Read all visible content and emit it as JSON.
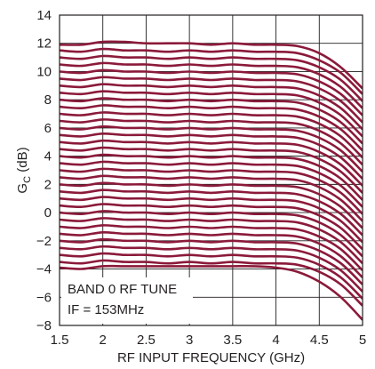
{
  "chart_data": {
    "type": "line",
    "xlabel": "RF INPUT FREQUENCY (GHz)",
    "ylabel_main": "G",
    "ylabel_sub": "C",
    "ylabel_unit": " (dB)",
    "xlim": [
      1.5,
      5
    ],
    "ylim": [
      -8,
      14
    ],
    "x_ticks": [
      "1.5",
      "2",
      "2.5",
      "3",
      "3.5",
      "4",
      "4.5",
      "5"
    ],
    "y_ticks": [
      "−8",
      "−6",
      "−4",
      "−2",
      "0",
      "2",
      "4",
      "6",
      "8",
      "10",
      "12",
      "14"
    ],
    "x_tick_values": [
      1.5,
      2,
      2.5,
      3,
      3.5,
      4,
      4.5,
      5
    ],
    "y_tick_values": [
      -8,
      -6,
      -4,
      -2,
      0,
      2,
      4,
      6,
      8,
      10,
      12,
      14
    ],
    "grid": true,
    "series_color": "#8b1a3a",
    "annotation": [
      "BAND 0 RF TUNE",
      "IF = 153MHz"
    ],
    "x": [
      1.5,
      1.75,
      2.0,
      2.25,
      2.5,
      2.75,
      3.0,
      3.25,
      3.5,
      3.75,
      4.0,
      4.25,
      4.5,
      4.75,
      5.0
    ],
    "series": [
      {
        "values": [
          11.9,
          11.9,
          12.1,
          12.1,
          12.0,
          12.0,
          12.0,
          11.9,
          12.0,
          11.9,
          11.9,
          11.8,
          11.3,
          10.3,
          8.8
        ]
      },
      {
        "values": [
          11.5,
          11.4,
          11.6,
          11.5,
          11.5,
          11.4,
          11.5,
          11.4,
          11.5,
          11.4,
          11.4,
          11.3,
          10.8,
          9.9,
          8.4
        ]
      },
      {
        "values": [
          11.0,
          10.9,
          11.1,
          11.0,
          11.0,
          10.9,
          11.0,
          10.9,
          11.0,
          10.9,
          10.9,
          10.8,
          10.3,
          9.4,
          7.9
        ]
      },
      {
        "values": [
          10.5,
          10.4,
          10.6,
          10.5,
          10.5,
          10.4,
          10.5,
          10.4,
          10.5,
          10.4,
          10.4,
          10.3,
          9.8,
          8.9,
          7.4
        ]
      },
      {
        "values": [
          10.0,
          9.9,
          10.1,
          10.0,
          10.0,
          9.9,
          10.0,
          9.9,
          10.0,
          9.9,
          9.9,
          9.8,
          9.3,
          8.4,
          6.9
        ]
      },
      {
        "values": [
          9.5,
          9.4,
          9.6,
          9.5,
          9.5,
          9.4,
          9.5,
          9.4,
          9.5,
          9.4,
          9.4,
          9.3,
          8.8,
          7.9,
          6.4
        ]
      },
      {
        "values": [
          9.0,
          8.9,
          9.1,
          9.0,
          9.0,
          8.9,
          9.0,
          8.9,
          9.0,
          8.9,
          8.9,
          8.8,
          8.3,
          7.4,
          5.9
        ]
      },
      {
        "values": [
          8.5,
          8.4,
          8.6,
          8.5,
          8.5,
          8.4,
          8.5,
          8.4,
          8.5,
          8.4,
          8.4,
          8.3,
          7.8,
          6.9,
          5.4
        ]
      },
      {
        "values": [
          8.0,
          7.9,
          8.1,
          8.0,
          8.0,
          7.9,
          8.0,
          7.9,
          8.0,
          7.9,
          7.9,
          7.8,
          7.3,
          6.4,
          4.9
        ]
      },
      {
        "values": [
          7.5,
          7.4,
          7.6,
          7.5,
          7.5,
          7.4,
          7.5,
          7.4,
          7.5,
          7.4,
          7.4,
          7.3,
          6.8,
          5.9,
          4.4
        ]
      },
      {
        "values": [
          7.0,
          6.9,
          7.1,
          7.0,
          7.0,
          6.9,
          7.0,
          6.9,
          7.0,
          6.9,
          6.9,
          6.8,
          6.3,
          5.4,
          3.9
        ]
      },
      {
        "values": [
          6.5,
          6.4,
          6.6,
          6.5,
          6.5,
          6.4,
          6.5,
          6.4,
          6.5,
          6.4,
          6.4,
          6.3,
          5.8,
          4.9,
          3.4
        ]
      },
      {
        "values": [
          6.0,
          5.9,
          6.1,
          6.0,
          6.0,
          5.9,
          6.0,
          5.9,
          6.0,
          5.9,
          5.9,
          5.8,
          5.3,
          4.4,
          2.9
        ]
      },
      {
        "values": [
          5.5,
          5.4,
          5.6,
          5.5,
          5.5,
          5.4,
          5.5,
          5.4,
          5.5,
          5.4,
          5.4,
          5.3,
          4.8,
          3.9,
          2.4
        ]
      },
      {
        "values": [
          5.0,
          4.9,
          5.1,
          5.0,
          5.0,
          4.9,
          5.0,
          4.9,
          5.0,
          4.9,
          4.9,
          4.8,
          4.3,
          3.4,
          1.9
        ]
      },
      {
        "values": [
          4.5,
          4.4,
          4.6,
          4.5,
          4.5,
          4.4,
          4.5,
          4.4,
          4.5,
          4.4,
          4.4,
          4.3,
          3.8,
          2.9,
          1.4
        ]
      },
      {
        "values": [
          4.0,
          3.9,
          4.1,
          4.0,
          4.0,
          3.9,
          4.0,
          3.9,
          4.0,
          3.9,
          3.9,
          3.8,
          3.3,
          2.4,
          0.9
        ]
      },
      {
        "values": [
          3.5,
          3.4,
          3.6,
          3.5,
          3.5,
          3.4,
          3.5,
          3.4,
          3.5,
          3.4,
          3.4,
          3.3,
          2.8,
          1.9,
          0.4
        ]
      },
      {
        "values": [
          3.0,
          2.9,
          3.1,
          3.0,
          3.0,
          2.9,
          3.0,
          2.9,
          3.0,
          2.9,
          2.9,
          2.8,
          2.3,
          1.4,
          -0.1
        ]
      },
      {
        "values": [
          2.5,
          2.4,
          2.6,
          2.5,
          2.5,
          2.4,
          2.5,
          2.4,
          2.5,
          2.4,
          2.4,
          2.3,
          1.8,
          0.9,
          -0.6
        ]
      },
      {
        "values": [
          2.0,
          1.9,
          2.1,
          2.0,
          2.0,
          1.9,
          2.0,
          1.9,
          2.0,
          1.9,
          1.9,
          1.8,
          1.3,
          0.4,
          -1.1
        ]
      },
      {
        "values": [
          1.5,
          1.4,
          1.6,
          1.5,
          1.5,
          1.4,
          1.5,
          1.4,
          1.5,
          1.4,
          1.4,
          1.3,
          0.8,
          -0.1,
          -1.6
        ]
      },
      {
        "values": [
          1.0,
          0.9,
          1.1,
          1.0,
          1.0,
          0.9,
          1.0,
          0.9,
          1.0,
          0.9,
          0.9,
          0.8,
          0.3,
          -0.6,
          -2.1
        ]
      },
      {
        "values": [
          0.5,
          0.4,
          0.6,
          0.5,
          0.5,
          0.4,
          0.5,
          0.4,
          0.5,
          0.4,
          0.4,
          0.3,
          -0.2,
          -1.1,
          -2.6
        ]
      },
      {
        "values": [
          0.0,
          -0.1,
          0.1,
          0.0,
          0.0,
          -0.1,
          0.0,
          -0.1,
          0.0,
          -0.1,
          -0.1,
          -0.2,
          -0.7,
          -1.6,
          -3.1
        ]
      },
      {
        "values": [
          -0.5,
          -0.6,
          -0.4,
          -0.5,
          -0.5,
          -0.6,
          -0.5,
          -0.6,
          -0.5,
          -0.6,
          -0.6,
          -0.7,
          -1.2,
          -2.1,
          -3.6
        ]
      },
      {
        "values": [
          -1.0,
          -1.1,
          -0.9,
          -1.0,
          -1.0,
          -1.1,
          -1.0,
          -1.1,
          -1.0,
          -1.1,
          -1.1,
          -1.2,
          -1.7,
          -2.6,
          -4.1
        ]
      },
      {
        "values": [
          -1.5,
          -1.6,
          -1.4,
          -1.5,
          -1.5,
          -1.6,
          -1.5,
          -1.6,
          -1.5,
          -1.6,
          -1.6,
          -1.7,
          -2.2,
          -3.1,
          -4.6
        ]
      },
      {
        "values": [
          -2.0,
          -2.1,
          -1.9,
          -2.0,
          -2.0,
          -2.1,
          -2.0,
          -2.1,
          -2.0,
          -2.1,
          -2.1,
          -2.2,
          -2.7,
          -3.6,
          -5.1
        ]
      },
      {
        "values": [
          -2.5,
          -2.6,
          -2.4,
          -2.5,
          -2.5,
          -2.6,
          -2.5,
          -2.6,
          -2.5,
          -2.6,
          -2.6,
          -2.7,
          -3.2,
          -4.1,
          -5.6
        ]
      },
      {
        "values": [
          -3.0,
          -3.1,
          -2.9,
          -3.0,
          -3.0,
          -3.1,
          -3.0,
          -3.1,
          -3.0,
          -3.1,
          -3.1,
          -3.2,
          -3.7,
          -4.6,
          -6.1
        ]
      },
      {
        "values": [
          -3.5,
          -3.6,
          -3.4,
          -3.5,
          -3.5,
          -3.6,
          -3.5,
          -3.6,
          -3.5,
          -3.6,
          -3.6,
          -3.7,
          -4.2,
          -5.1,
          -6.6
        ]
      },
      {
        "values": [
          -3.9,
          -4.0,
          -3.8,
          -3.8,
          -3.8,
          -3.8,
          -3.8,
          -3.8,
          -3.8,
          -3.8,
          -3.9,
          -4.2,
          -4.9,
          -6.0,
          -7.6
        ]
      }
    ]
  }
}
